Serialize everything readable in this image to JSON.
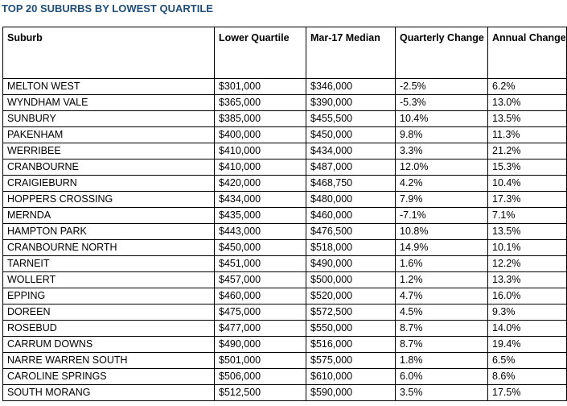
{
  "title": "TOP 20 SUBURBS BY LOWEST QUARTILE",
  "table": {
    "headers": [
      "Suburb",
      "Lower Quartile",
      "Mar-17 Median",
      "Quarterly Change",
      "Annual Change"
    ],
    "rows": [
      [
        "MELTON WEST",
        "$301,000",
        "$346,000",
        "-2.5%",
        "6.2%"
      ],
      [
        "WYNDHAM VALE",
        "$365,000",
        "$390,000",
        "-5.3%",
        "13.0%"
      ],
      [
        "SUNBURY",
        "$385,000",
        "$455,500",
        "10.4%",
        "13.5%"
      ],
      [
        "PAKENHAM",
        "$400,000",
        "$450,000",
        "9.8%",
        "11.3%"
      ],
      [
        "WERRIBEE",
        "$410,000",
        "$434,000",
        "3.3%",
        "21.2%"
      ],
      [
        "CRANBOURNE",
        "$410,000",
        "$487,000",
        "12.0%",
        "15.3%"
      ],
      [
        "CRAIGIEBURN",
        "$420,000",
        "$468,750",
        "4.2%",
        "10.4%"
      ],
      [
        "HOPPERS CROSSING",
        "$434,000",
        "$480,000",
        "7.9%",
        "17.3%"
      ],
      [
        "MERNDA",
        "$435,000",
        "$460,000",
        "-7.1%",
        "7.1%"
      ],
      [
        "HAMPTON PARK",
        "$443,000",
        "$476,500",
        "10.8%",
        "13.5%"
      ],
      [
        "CRANBOURNE NORTH",
        "$450,000",
        "$518,000",
        "14.9%",
        "10.1%"
      ],
      [
        "TARNEIT",
        "$451,000",
        "$490,000",
        "1.6%",
        "12.2%"
      ],
      [
        "WOLLERT",
        "$457,000",
        "$500,000",
        "1.2%",
        "13.3%"
      ],
      [
        "EPPING",
        "$460,000",
        "$520,000",
        "4.7%",
        "16.0%"
      ],
      [
        "DOREEN",
        "$475,000",
        "$572,500",
        "4.5%",
        "9.3%"
      ],
      [
        "ROSEBUD",
        "$477,000",
        "$550,000",
        "8.7%",
        "14.0%"
      ],
      [
        "CARRUM DOWNS",
        "$490,000",
        "$516,000",
        "8.7%",
        "19.4%"
      ],
      [
        "NARRE WARREN SOUTH",
        "$501,000",
        "$575,000",
        "1.8%",
        "6.5%"
      ],
      [
        "CAROLINE SPRINGS",
        "$506,000",
        "$610,000",
        "6.0%",
        "8.6%"
      ],
      [
        "SOUTH MORANG",
        "$512,500",
        "$590,000",
        "3.5%",
        "17.5%"
      ]
    ]
  },
  "colors": {
    "title": "#1f4e79",
    "grid": "#000000"
  }
}
